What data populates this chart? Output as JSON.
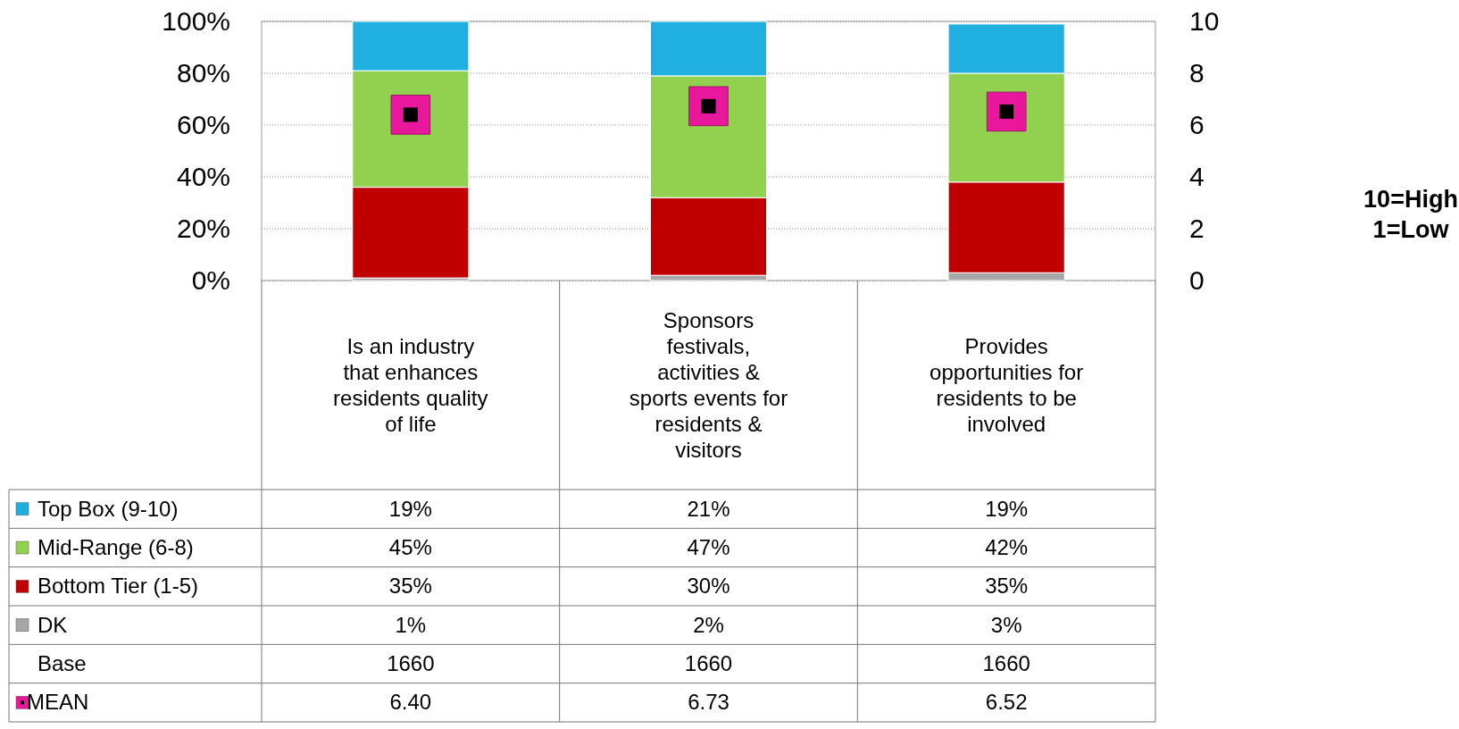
{
  "chart_data": {
    "type": "bar",
    "stacked": true,
    "categories": [
      "Is an industry that enhances residents quality of life",
      "Sponsors festivals, activities & sports events for residents & visitors",
      "Provides opportunities for residents to be involved"
    ],
    "series": [
      {
        "name": "DK",
        "color": "#a6a6a6",
        "values": [
          1,
          2,
          3
        ],
        "value_labels": [
          "1%",
          "2%",
          "3%"
        ]
      },
      {
        "name": "Bottom Tier (1-5)",
        "color": "#c00000",
        "values": [
          35,
          30,
          35
        ],
        "value_labels": [
          "35%",
          "30%",
          "35%"
        ]
      },
      {
        "name": "Mid-Range (6-8)",
        "color": "#92d050",
        "values": [
          45,
          47,
          42
        ],
        "value_labels": [
          "45%",
          "47%",
          "42%"
        ]
      },
      {
        "name": "Top Box (9-10)",
        "color": "#1fb0e0",
        "values": [
          19,
          21,
          19
        ],
        "value_labels": [
          "19%",
          "21%",
          "19%"
        ]
      },
      {
        "name": "MEAN",
        "type": "scatter",
        "axis": "y2",
        "marker": "square",
        "color": "#e8179c",
        "values": [
          6.4,
          6.73,
          6.52
        ],
        "value_labels": [
          "6.40",
          "6.73",
          "6.52"
        ]
      }
    ],
    "ylim": [
      0,
      100
    ],
    "yticks": [
      {
        "value": 0,
        "label": "0%"
      },
      {
        "value": 20,
        "label": "20%"
      },
      {
        "value": 40,
        "label": "40%"
      },
      {
        "value": 60,
        "label": "60%"
      },
      {
        "value": 80,
        "label": "80%"
      },
      {
        "value": 100,
        "label": "100%"
      }
    ],
    "y2lim": [
      0,
      10
    ],
    "y2ticks": [
      0,
      2,
      4,
      6,
      8,
      10
    ],
    "grid": "y",
    "legend": "bottom",
    "annotations": [
      "Base",
      "1660",
      "1660",
      "1660",
      "10=High",
      "1=Low"
    ]
  }
}
